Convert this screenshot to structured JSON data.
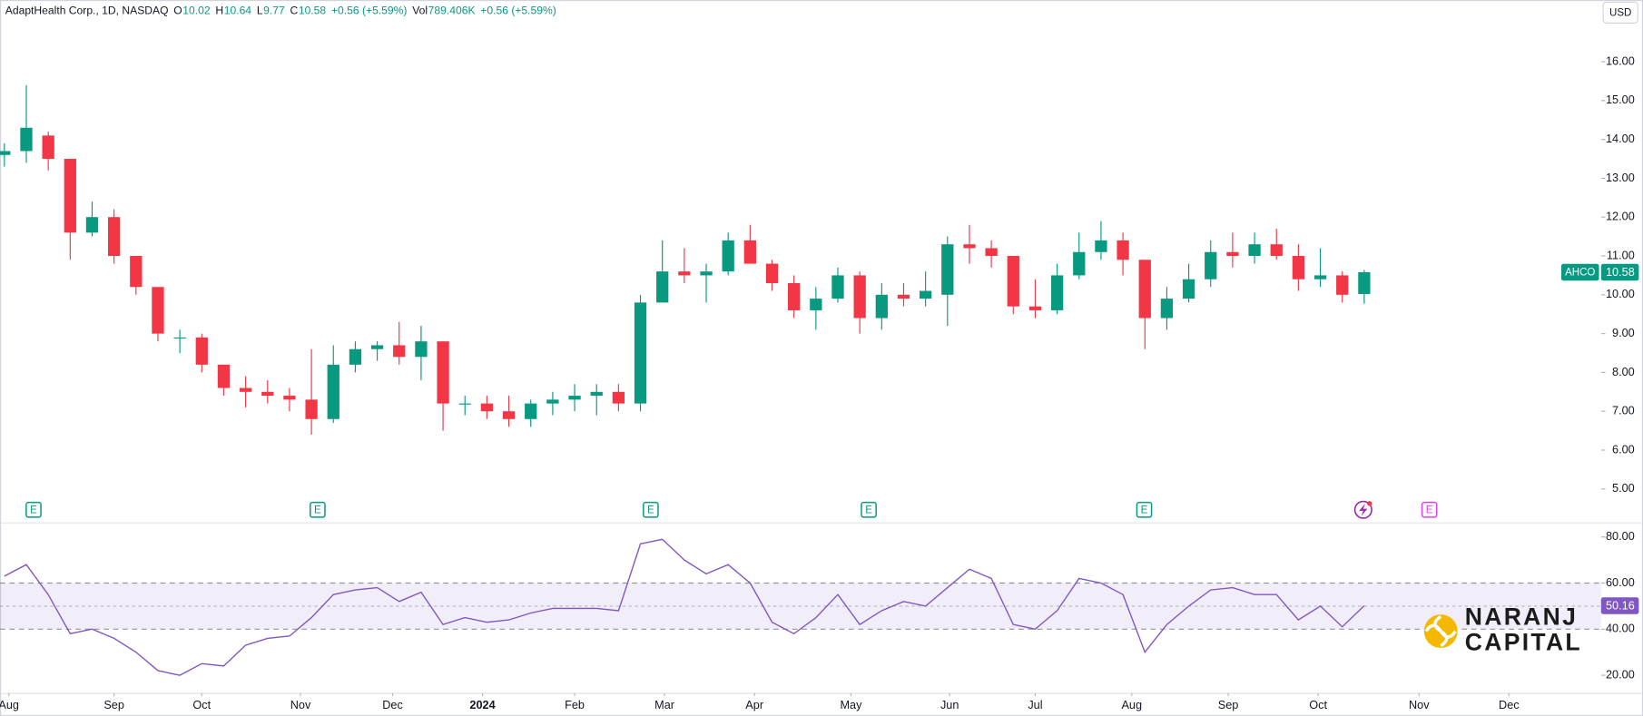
{
  "chart_data": {
    "type": "candlestick",
    "title": "AdaptHealth Corp., 1D, NASDAQ",
    "ohlc_legend": [
      {
        "label": "O",
        "text": "10.02"
      },
      {
        "label": "H",
        "text": "10.64"
      },
      {
        "label": "L",
        "text": "9.77"
      },
      {
        "label": "C",
        "text": "10.58"
      }
    ],
    "change": "+0.56 (+5.59%)",
    "volume": {
      "label": "Vol",
      "text": "789.406K"
    },
    "volume_change": "+0.56 (+5.59%)",
    "currency": "USD",
    "symbol": "AHCO",
    "last_price": 10.58,
    "up_color": "#089981",
    "down_color": "#f23645",
    "x": [
      0,
      1,
      2,
      3,
      4,
      5,
      6,
      7,
      8,
      9,
      10,
      11,
      12,
      13,
      14,
      15,
      16,
      17,
      18,
      19,
      20,
      21,
      22,
      23,
      24,
      25,
      26,
      27,
      28,
      29,
      30,
      31,
      32,
      33,
      34,
      35,
      36,
      37,
      38,
      39,
      40,
      41,
      42,
      43,
      44,
      45,
      46,
      47,
      48,
      49,
      50,
      51,
      52,
      53,
      54,
      55,
      56,
      57,
      58,
      59,
      60,
      61,
      62
    ],
    "open": [
      13.6,
      13.7,
      14.1,
      13.5,
      11.6,
      12.0,
      11.0,
      10.2,
      8.9,
      8.9,
      8.2,
      7.6,
      7.5,
      7.4,
      7.3,
      6.8,
      8.2,
      8.6,
      8.7,
      8.4,
      8.8,
      7.2,
      7.2,
      7.0,
      6.8,
      7.2,
      7.3,
      7.4,
      7.5,
      7.2,
      9.8,
      10.6,
      10.5,
      10.6,
      11.4,
      10.8,
      10.3,
      9.6,
      9.9,
      10.5,
      9.4,
      10.0,
      9.9,
      10.0,
      11.3,
      11.2,
      11.0,
      9.7,
      9.6,
      10.5,
      11.1,
      11.4,
      10.9,
      9.4,
      9.9,
      10.4,
      11.1,
      11.0,
      11.3,
      11.0,
      10.4,
      10.5,
      10.02
    ],
    "high": [
      13.9,
      15.4,
      14.2,
      13.5,
      12.4,
      12.2,
      11.0,
      10.2,
      9.1,
      9.0,
      8.2,
      7.9,
      7.8,
      7.6,
      8.6,
      8.7,
      8.8,
      8.8,
      9.3,
      9.2,
      8.8,
      7.4,
      7.4,
      7.4,
      7.3,
      7.5,
      7.7,
      7.7,
      7.7,
      10.0,
      11.4,
      11.2,
      10.8,
      11.6,
      11.8,
      10.9,
      10.5,
      10.2,
      10.7,
      10.6,
      10.3,
      10.3,
      10.6,
      11.5,
      11.8,
      11.4,
      11.0,
      10.4,
      10.8,
      11.6,
      11.9,
      11.6,
      10.9,
      10.2,
      10.8,
      11.4,
      11.6,
      11.6,
      11.7,
      11.3,
      11.2,
      10.6,
      10.64
    ],
    "low": [
      13.3,
      13.4,
      13.2,
      10.9,
      11.5,
      10.8,
      10.0,
      8.8,
      8.5,
      8.0,
      7.4,
      7.1,
      7.2,
      7.0,
      6.4,
      6.7,
      8.0,
      8.3,
      8.2,
      7.8,
      6.5,
      6.9,
      6.8,
      6.6,
      6.6,
      6.9,
      7.0,
      6.9,
      7.0,
      7.0,
      9.8,
      10.3,
      9.8,
      10.5,
      10.8,
      10.1,
      9.4,
      9.1,
      9.8,
      9.0,
      9.1,
      9.7,
      9.7,
      9.2,
      10.8,
      10.7,
      9.5,
      9.4,
      9.5,
      10.4,
      10.9,
      10.5,
      8.6,
      9.1,
      9.8,
      10.2,
      10.7,
      10.8,
      10.9,
      10.1,
      10.2,
      9.8,
      9.77
    ],
    "close": [
      13.7,
      14.3,
      13.5,
      11.6,
      12.0,
      11.0,
      10.2,
      9.0,
      8.9,
      8.2,
      7.6,
      7.5,
      7.4,
      7.3,
      6.8,
      8.2,
      8.6,
      8.7,
      8.4,
      8.8,
      7.2,
      7.2,
      7.0,
      6.8,
      7.2,
      7.3,
      7.4,
      7.5,
      7.2,
      9.8,
      10.6,
      10.5,
      10.6,
      11.4,
      10.8,
      10.3,
      9.6,
      9.9,
      10.5,
      9.4,
      10.0,
      9.9,
      10.1,
      11.3,
      11.2,
      11.0,
      9.7,
      9.6,
      10.5,
      11.1,
      11.4,
      10.9,
      9.4,
      9.9,
      10.4,
      11.1,
      11.0,
      11.3,
      11.0,
      10.4,
      10.5,
      10.0,
      10.58
    ],
    "xlim": [
      -0.2,
      72.8
    ],
    "xticks": [
      {
        "value": 0.2,
        "label": "Aug"
      },
      {
        "value": 5.0,
        "label": "Sep"
      },
      {
        "value": 9.0,
        "label": "Oct"
      },
      {
        "value": 13.5,
        "label": "Nov"
      },
      {
        "value": 17.7,
        "label": "Dec"
      },
      {
        "value": 21.8,
        "label": "2024"
      },
      {
        "value": 26.0,
        "label": "Feb"
      },
      {
        "value": 30.1,
        "label": "Mar"
      },
      {
        "value": 34.2,
        "label": "Apr"
      },
      {
        "value": 38.6,
        "label": "May"
      },
      {
        "value": 43.1,
        "label": "Jun"
      },
      {
        "value": 47.0,
        "label": "Jul"
      },
      {
        "value": 51.4,
        "label": "Aug"
      },
      {
        "value": 55.8,
        "label": "Sep"
      },
      {
        "value": 59.9,
        "label": "Oct"
      },
      {
        "value": 64.5,
        "label": "Nov"
      },
      {
        "value": 68.6,
        "label": "Dec"
      }
    ],
    "ylim": [
      4.14,
      17.59
    ],
    "yticks": [
      {
        "value": 5,
        "label": "5.00"
      },
      {
        "value": 6,
        "label": "6.00"
      },
      {
        "value": 7,
        "label": "7.00"
      },
      {
        "value": 8,
        "label": "8.00"
      },
      {
        "value": 9,
        "label": "9.00"
      },
      {
        "value": 10,
        "label": "10.00"
      },
      {
        "value": 11,
        "label": "11.00"
      },
      {
        "value": 12,
        "label": "12.00"
      },
      {
        "value": 13,
        "label": "13.00"
      },
      {
        "value": 14,
        "label": "14.00"
      },
      {
        "value": 15,
        "label": "15.00"
      },
      {
        "value": 16,
        "label": "16.00"
      }
    ],
    "events": [
      {
        "x": 1.33,
        "label": "E",
        "color": "#089981"
      },
      {
        "x": 14.28,
        "label": "E",
        "color": "#089981"
      },
      {
        "x": 29.47,
        "label": "E",
        "color": "#089981"
      },
      {
        "x": 39.41,
        "label": "E",
        "color": "#089981"
      },
      {
        "x": 51.97,
        "label": "E",
        "color": "#089981"
      },
      {
        "x": 64.97,
        "label": "E",
        "color": "#e040fb"
      }
    ],
    "rsi": {
      "type": "line",
      "color": "#7e57c2",
      "values": [
        63,
        68,
        55,
        38,
        40,
        36,
        30,
        22,
        20,
        25,
        24,
        33,
        36,
        37,
        45,
        55,
        57,
        58,
        52,
        56,
        42,
        45,
        43,
        44,
        47,
        49,
        49,
        49,
        48,
        77,
        79,
        70,
        64,
        68,
        60,
        43,
        38,
        45,
        55,
        42,
        48,
        52,
        50,
        58,
        66,
        62,
        42,
        40,
        48,
        62,
        60,
        55,
        30,
        42,
        50,
        57,
        58,
        55,
        55,
        44,
        50,
        41,
        50.16
      ],
      "last_value": 50.16,
      "ylim": [
        12.3,
        85.9
      ],
      "yticks": [
        {
          "value": 80,
          "label": "80.00"
        },
        {
          "value": 60,
          "label": "60.00"
        },
        {
          "value": 40,
          "label": "40.00"
        },
        {
          "value": 20,
          "label": "20.00"
        }
      ],
      "bands": {
        "upper": 60,
        "middle": 50,
        "lower": 40
      }
    },
    "watermark": [
      "NARANJ",
      "CAPITAL"
    ]
  }
}
